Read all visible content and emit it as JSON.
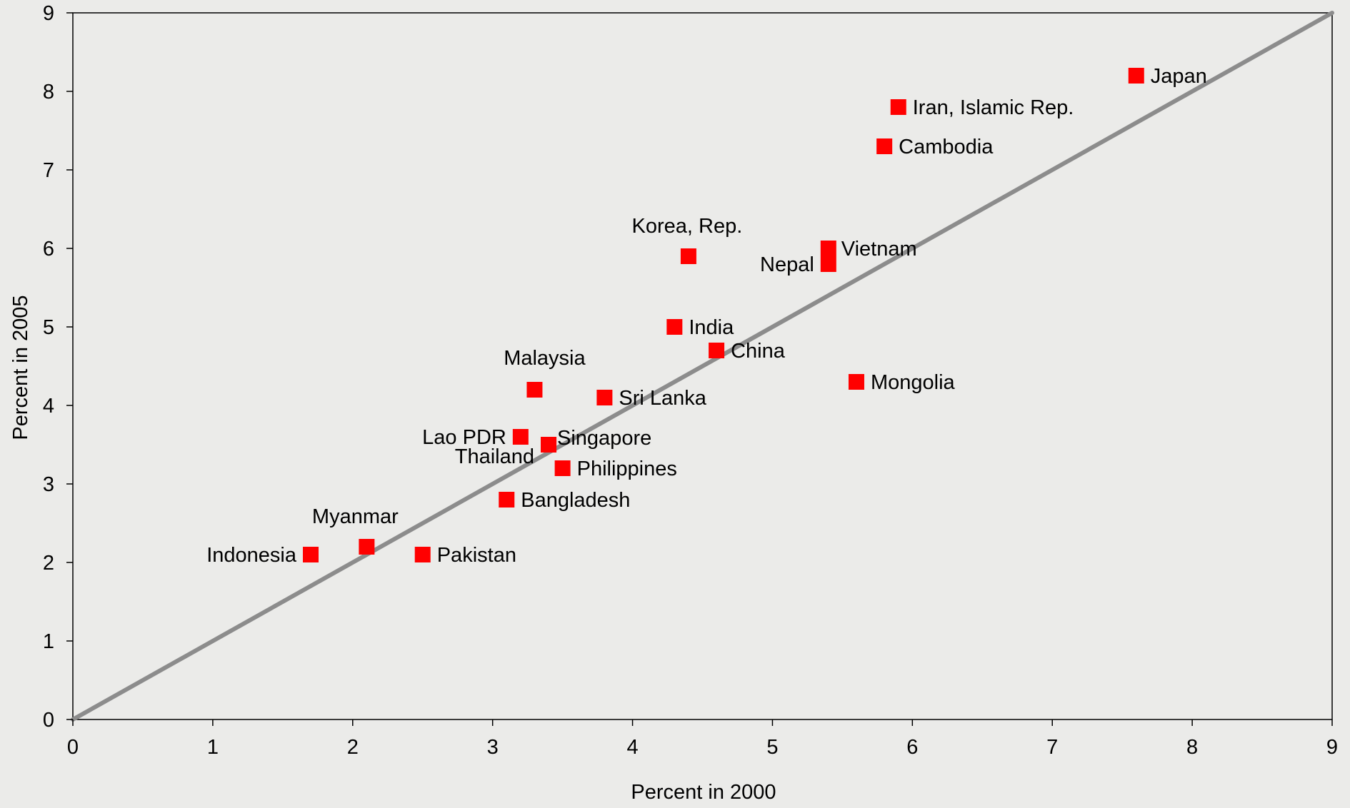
{
  "chart_data": {
    "type": "scatter",
    "title": "",
    "xlabel": "Percent in 2000",
    "ylabel": "Percent in 2005",
    "xlim": [
      0,
      9
    ],
    "ylim": [
      0,
      9
    ],
    "xticks": [
      "0",
      "1",
      "2",
      "3",
      "4",
      "5",
      "6",
      "7",
      "8",
      "9"
    ],
    "yticks": [
      "0",
      "1",
      "2",
      "3",
      "4",
      "5",
      "6",
      "7",
      "8",
      "9"
    ],
    "grid": false,
    "legend": "none",
    "reference_line": {
      "from": [
        0,
        0
      ],
      "to": [
        9,
        9
      ],
      "color": "#8c8c8c"
    },
    "marker_color": "#ff0000",
    "points": [
      {
        "label": "Japan",
        "x": 7.6,
        "y": 8.2
      },
      {
        "label": "Iran, Islamic Rep.",
        "x": 5.9,
        "y": 7.8
      },
      {
        "label": "Cambodia",
        "x": 5.8,
        "y": 7.3
      },
      {
        "label": "Korea, Rep.",
        "x": 4.4,
        "y": 5.9
      },
      {
        "label": "Vietnam",
        "x": 5.4,
        "y": 6.0
      },
      {
        "label": "Nepal",
        "x": 5.4,
        "y": 5.8
      },
      {
        "label": "India",
        "x": 4.3,
        "y": 5.0
      },
      {
        "label": "China",
        "x": 4.6,
        "y": 4.7
      },
      {
        "label": "Malaysia",
        "x": 3.3,
        "y": 4.2
      },
      {
        "label": "Sri Lanka",
        "x": 3.8,
        "y": 4.1
      },
      {
        "label": "Mongolia",
        "x": 5.6,
        "y": 4.3
      },
      {
        "label": "Lao PDR",
        "x": 3.2,
        "y": 3.6
      },
      {
        "label": "Singapore",
        "x": 3.4,
        "y": 3.5
      },
      {
        "label": "Thailand",
        "x": 3.4,
        "y": 3.5
      },
      {
        "label": "Philippines",
        "x": 3.5,
        "y": 3.2
      },
      {
        "label": "Bangladesh",
        "x": 3.1,
        "y": 2.8
      },
      {
        "label": "Myanmar",
        "x": 2.1,
        "y": 2.2
      },
      {
        "label": "Indonesia",
        "x": 1.7,
        "y": 2.1
      },
      {
        "label": "Pakistan",
        "x": 2.5,
        "y": 2.1
      }
    ]
  }
}
